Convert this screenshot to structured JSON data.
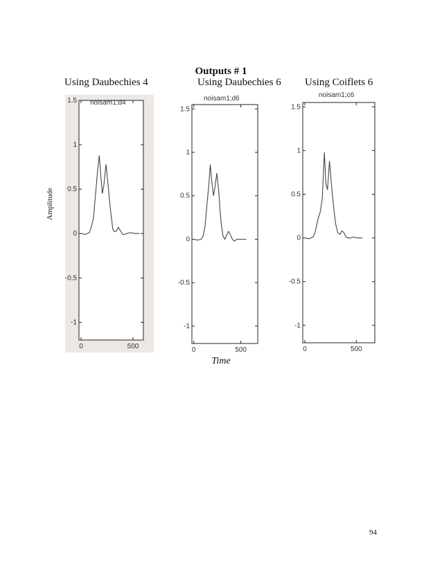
{
  "page": {
    "title": "Outputs # 1",
    "ylabel": "Amplitude",
    "xlabel": "Time",
    "page_number": "94",
    "columns": [
      "Using Daubechies 4",
      "Using Daubechies 6",
      "Using Coiflets 6"
    ]
  },
  "chart_data": [
    {
      "type": "line",
      "title": "noisam1;d4",
      "ylim": [
        -1.2,
        1.5
      ],
      "xlim": [
        -20,
        600
      ],
      "yticks": [
        -1,
        -0.5,
        0,
        0.5,
        1,
        1.5
      ],
      "ytick_labels": [
        "-1",
        "-0.5",
        "0",
        "0.5",
        "1",
        "1.5"
      ],
      "xticks": [
        0,
        500
      ],
      "xtick_labels": [
        "0",
        "500"
      ],
      "scanned_background": true,
      "series": [
        {
          "x": [
            0,
            40,
            80,
            100,
            120,
            140,
            160,
            175,
            190,
            205,
            220,
            240,
            260,
            275,
            290,
            305,
            320,
            340,
            360,
            380,
            400,
            420,
            440,
            470,
            520,
            560
          ],
          "y": [
            0,
            -0.01,
            0.01,
            0.08,
            0.18,
            0.45,
            0.72,
            0.88,
            0.65,
            0.45,
            0.55,
            0.78,
            0.55,
            0.35,
            0.2,
            0.05,
            0.02,
            0.03,
            0.07,
            0.03,
            -0.01,
            -0.01,
            0.0,
            0.01,
            0.0,
            0.0
          ]
        }
      ]
    },
    {
      "type": "line",
      "title": "noisam1;d6",
      "ylim": [
        -1.2,
        1.55
      ],
      "xlim": [
        -20,
        680
      ],
      "yticks": [
        -1,
        -0.5,
        0,
        0.5,
        1,
        1.5
      ],
      "ytick_labels": [
        "-1",
        "-0.5",
        "0",
        "0.5",
        "1",
        "1.5"
      ],
      "xticks": [
        0,
        500
      ],
      "xtick_labels": [
        "0",
        "500"
      ],
      "scanned_background": false,
      "series": [
        {
          "x": [
            0,
            40,
            80,
            100,
            120,
            140,
            160,
            175,
            190,
            210,
            225,
            245,
            265,
            280,
            295,
            310,
            330,
            350,
            370,
            390,
            410,
            430,
            460,
            500,
            560
          ],
          "y": [
            0,
            -0.01,
            0.0,
            0.04,
            0.15,
            0.4,
            0.62,
            0.86,
            0.68,
            0.5,
            0.6,
            0.76,
            0.55,
            0.32,
            0.15,
            0.04,
            0.0,
            0.05,
            0.09,
            0.05,
            0.0,
            -0.02,
            0.0,
            0.0,
            0.0
          ]
        }
      ]
    },
    {
      "type": "line",
      "title": "noisam1;c6",
      "ylim": [
        -1.2,
        1.55
      ],
      "xlim": [
        -20,
        680
      ],
      "yticks": [
        -1,
        -0.5,
        0,
        0.5,
        1,
        1.5
      ],
      "ytick_labels": [
        "-1",
        "-0.5",
        "0",
        "0.5",
        "1",
        "1.5"
      ],
      "xticks": [
        0,
        500
      ],
      "xtick_labels": [
        "0",
        "500"
      ],
      "scanned_background": false,
      "series": [
        {
          "x": [
            0,
            40,
            80,
            100,
            125,
            150,
            170,
            190,
            205,
            220,
            240,
            260,
            280,
            300,
            320,
            340,
            360,
            380,
            400,
            420,
            440,
            470,
            510,
            560
          ],
          "y": [
            0,
            -0.01,
            0.01,
            0.06,
            0.2,
            0.3,
            0.45,
            0.98,
            0.62,
            0.55,
            0.88,
            0.6,
            0.35,
            0.16,
            0.06,
            0.04,
            0.08,
            0.06,
            0.01,
            0.0,
            0.0,
            0.01,
            0.0,
            0.0
          ]
        }
      ]
    }
  ]
}
